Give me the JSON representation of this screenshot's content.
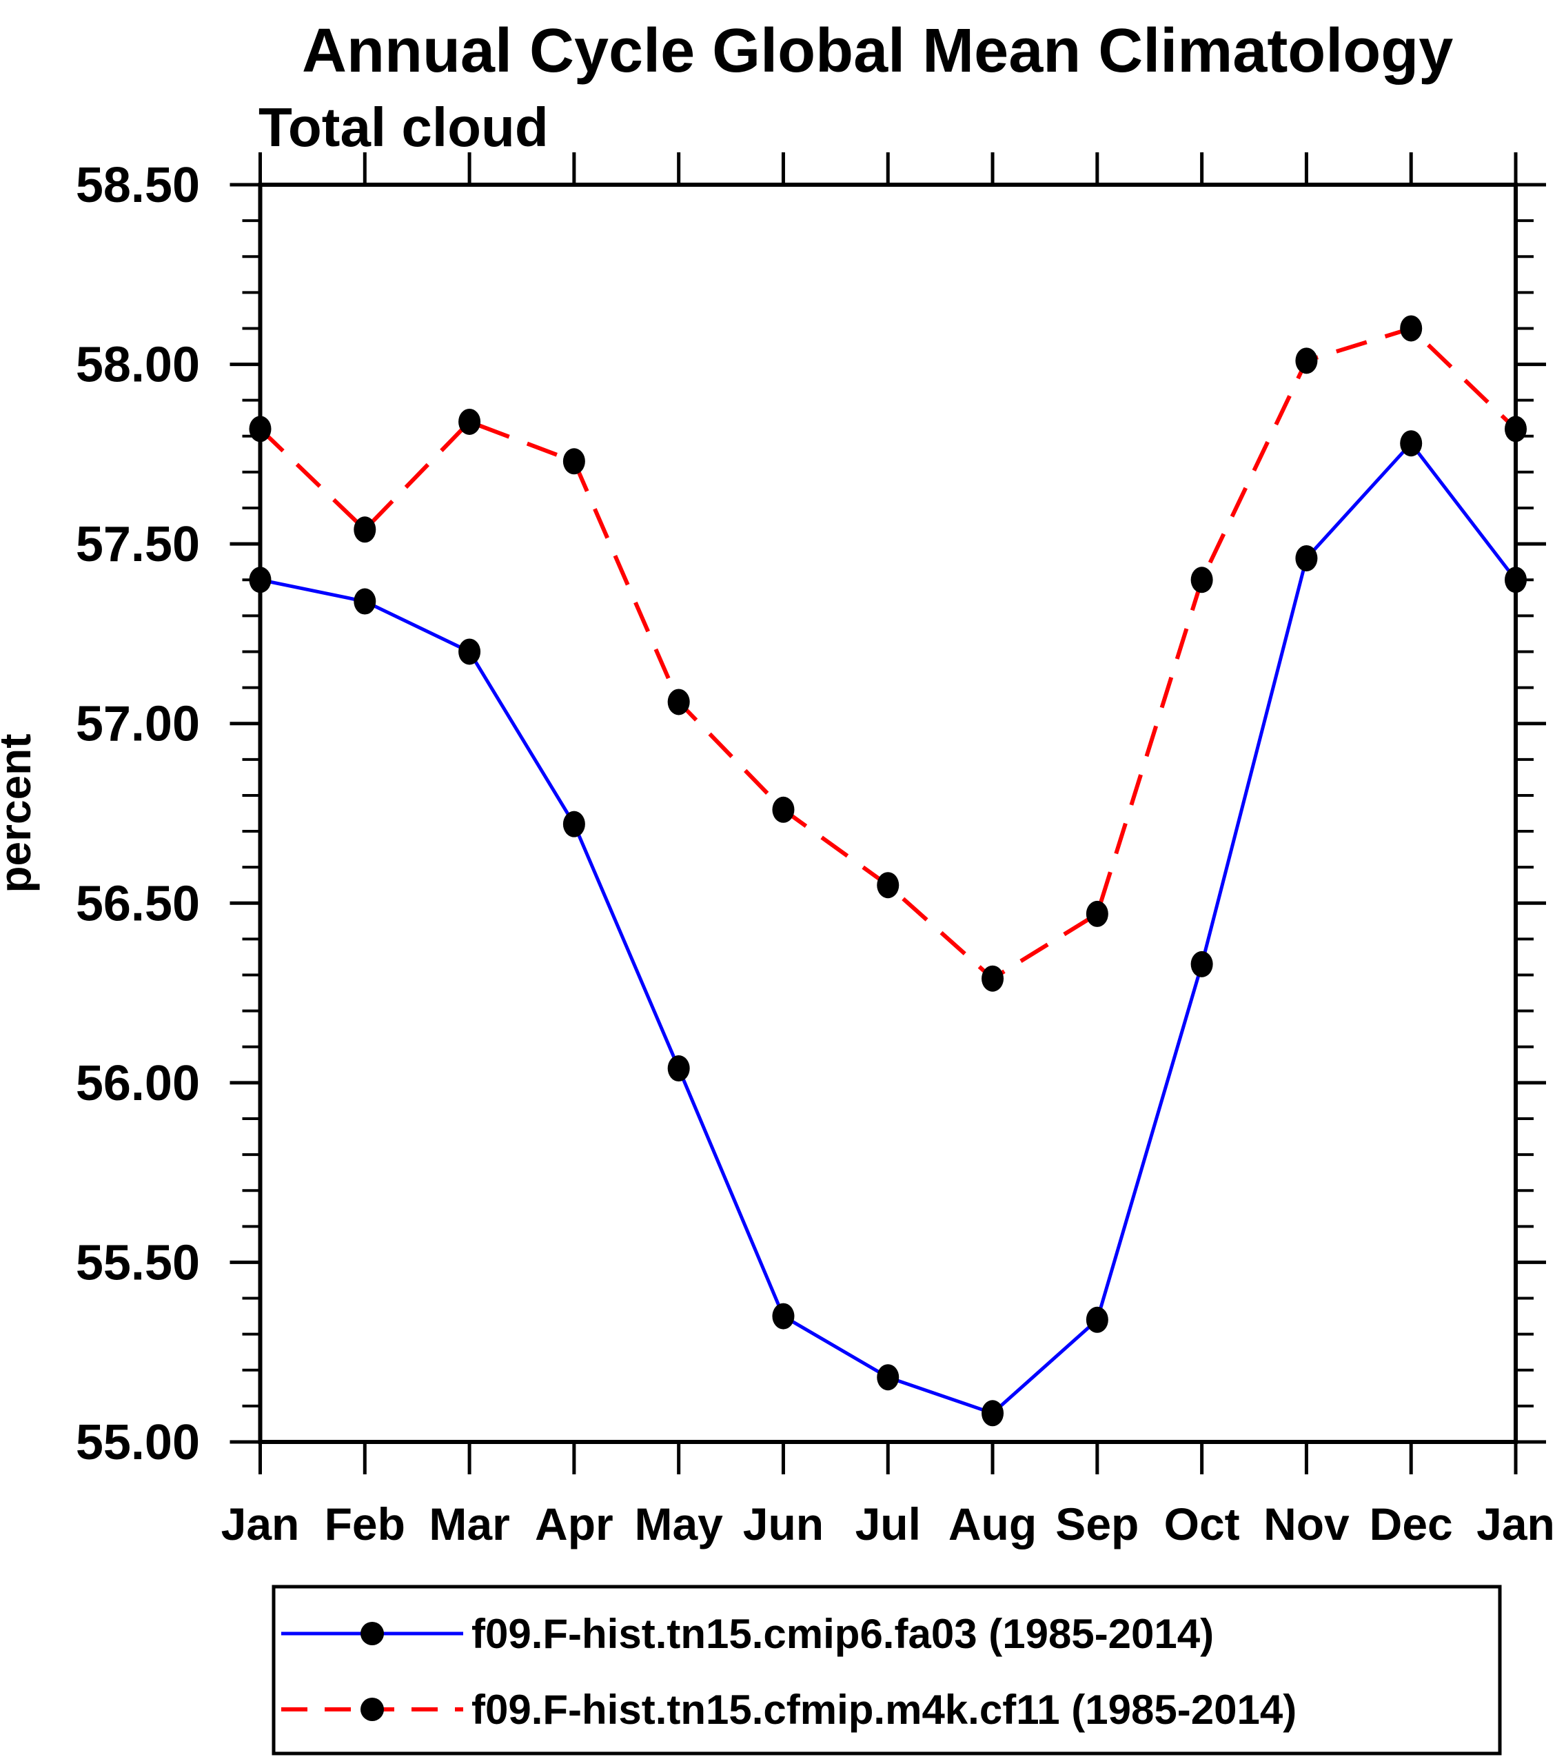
{
  "chart_data": {
    "type": "line",
    "title": "Annual Cycle Global Mean Climatology",
    "subtitle": "Total cloud",
    "ylabel": "percent",
    "xlabel": "",
    "categories": [
      "Jan",
      "Feb",
      "Mar",
      "Apr",
      "May",
      "Jun",
      "Jul",
      "Aug",
      "Sep",
      "Oct",
      "Nov",
      "Dec",
      "Jan"
    ],
    "series": [
      {
        "name": "f09.F-hist.tn15.cmip6.fa03 (1985-2014)",
        "color": "#0000ff",
        "line_style": "solid",
        "marker": "filled-circle",
        "marker_color": "#000000",
        "values": [
          57.4,
          57.34,
          57.2,
          56.72,
          56.04,
          55.35,
          55.18,
          55.08,
          55.34,
          56.33,
          57.46,
          57.78,
          57.4
        ]
      },
      {
        "name": "f09.F-hist.tn15.cfmip.m4k.cf11 (1985-2014)",
        "color": "#ff0000",
        "line_style": "dashed",
        "marker": "filled-circle",
        "marker_color": "#000000",
        "values": [
          57.82,
          57.54,
          57.84,
          57.73,
          57.06,
          56.76,
          56.55,
          56.29,
          56.47,
          57.4,
          58.01,
          58.1,
          57.82
        ]
      }
    ],
    "ylim": [
      55.0,
      58.5
    ],
    "ytick_major_step": 0.5,
    "ytick_minor_step": 0.1,
    "ytick_labels": [
      "55.00",
      "55.50",
      "56.00",
      "56.50",
      "57.00",
      "57.50",
      "58.00",
      "58.50"
    ],
    "ytick_values": [
      55.0,
      55.5,
      56.0,
      56.5,
      57.0,
      57.5,
      58.0,
      58.5
    ],
    "grid": false,
    "legend_position": "bottom",
    "frame_color": "#000000",
    "background_color": "#ffffff"
  }
}
